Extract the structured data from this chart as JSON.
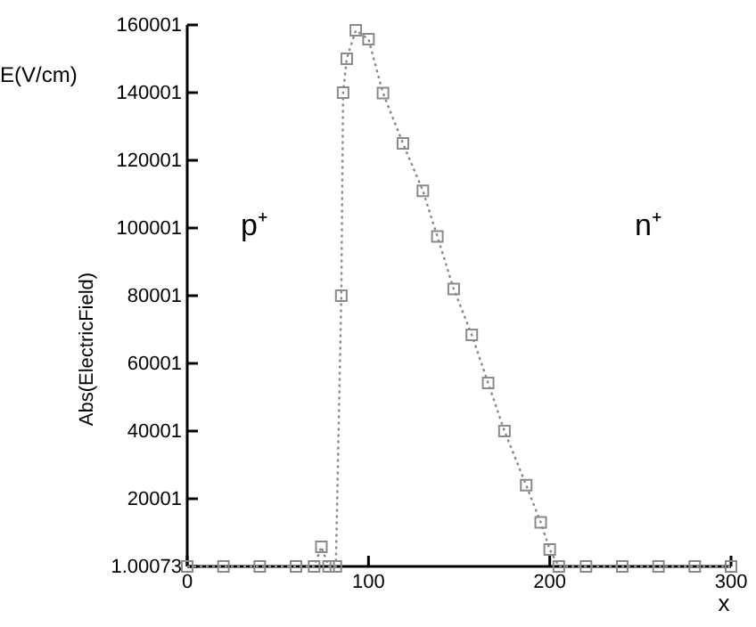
{
  "chart_data": {
    "type": "line",
    "xlabel": "x",
    "ylabel": "Abs(ElectricField)",
    "annotations": [
      "E(V/cm)",
      "p⁺",
      "n⁺"
    ],
    "x": [
      0,
      20,
      40,
      60,
      70,
      74,
      78,
      82,
      85,
      86,
      88,
      93,
      100,
      108,
      119,
      130,
      138,
      147,
      157,
      166,
      175,
      187,
      195,
      200,
      205,
      220,
      240,
      260,
      280,
      300
    ],
    "series": [
      {
        "color": "#8a8a8a",
        "values": [
          1.001,
          1.001,
          1.001,
          1.001,
          1.001,
          5800,
          1.001,
          1.001,
          80000,
          140000,
          150000,
          158400,
          155800,
          139900,
          125000,
          111000,
          97500,
          82000,
          68400,
          54200,
          40000,
          24000,
          13000,
          5000,
          1.001,
          1.001,
          1.001,
          1.001,
          1.001,
          1.001
        ]
      }
    ],
    "xlim": [
      0,
      300
    ],
    "xticks": [
      0,
      100,
      200,
      300
    ],
    "ylim": [
      1.00073,
      160001
    ],
    "yticks": [
      1.00073,
      20001,
      40001,
      60001,
      80001,
      100001,
      120001,
      140001,
      160001
    ],
    "marker": "square",
    "line_style": "dotted"
  }
}
